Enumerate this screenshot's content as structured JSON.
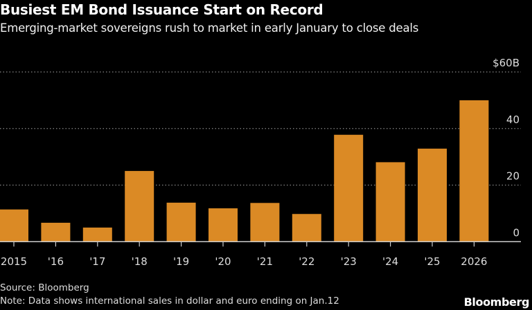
{
  "title": "Busiest EM Bond Issuance Start on Record",
  "subtitle": "Emerging-market sovereigns rush to market in early January to close deals",
  "source": "Source: Bloomberg",
  "note": "Note: Data shows international sales in dollar and euro ending on Jan.12",
  "logo": "Bloomberg",
  "colors": {
    "bar": "#DB8A25",
    "background": "#000000",
    "grid": "#888888"
  },
  "chart_data": {
    "type": "bar",
    "categories": [
      "2015",
      "'16",
      "'17",
      "'18",
      "'19",
      "'20",
      "'21",
      "'22",
      "'23",
      "'24",
      "'25",
      "2026"
    ],
    "values": [
      11.4,
      6.7,
      5.0,
      25.0,
      13.8,
      11.8,
      13.7,
      9.8,
      37.8,
      28.1,
      32.9,
      50.0
    ],
    "ylim": [
      0,
      60
    ],
    "yticks": [
      0,
      20,
      40,
      60
    ],
    "ytick_labels": [
      "0",
      "20",
      "40",
      "$60B"
    ],
    "grid": true,
    "yaxis_position": "right"
  }
}
